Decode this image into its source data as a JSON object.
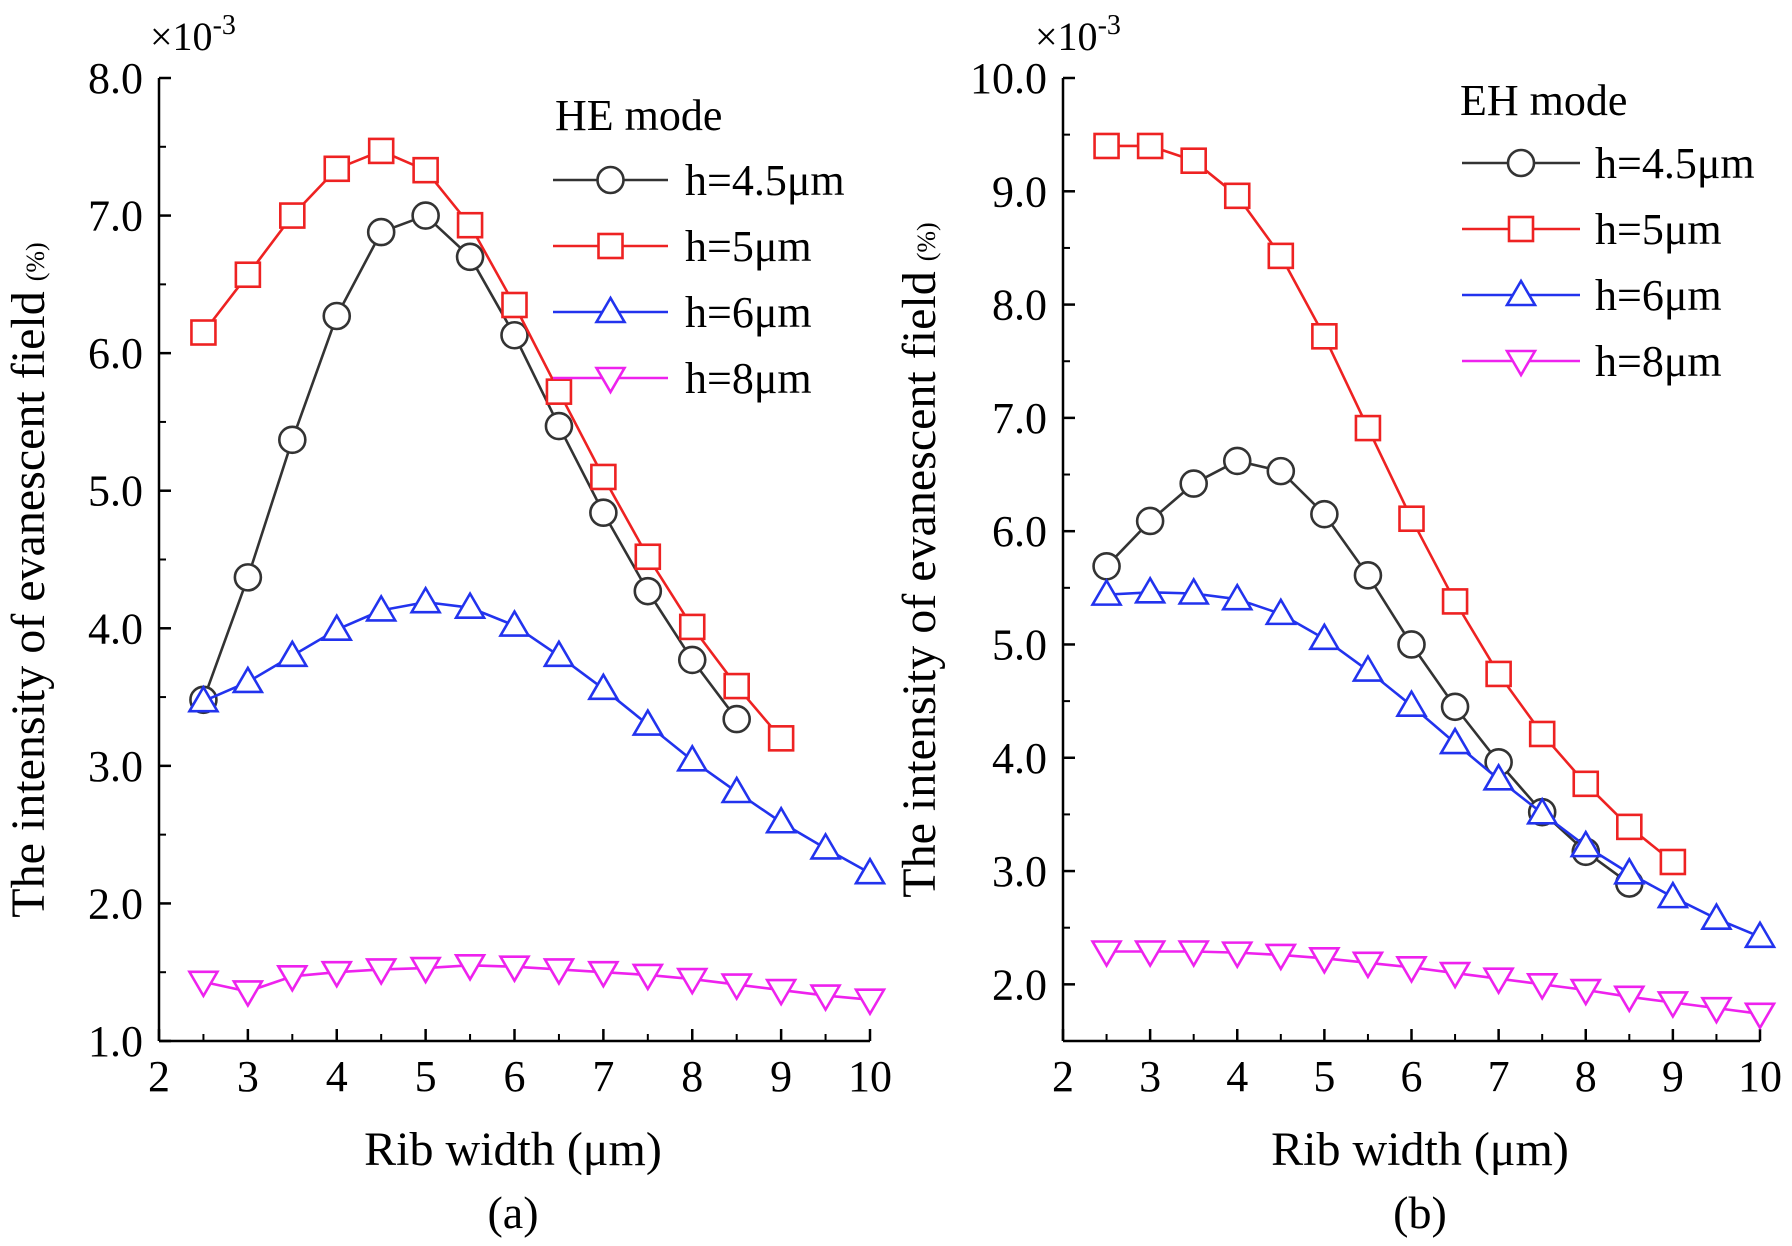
{
  "chart_data": [
    {
      "type": "line",
      "panel_label": "(a)",
      "legend_title": "HE mode",
      "xlabel": "Rib width (μm)",
      "ylabel": "The intensity of evanescent field",
      "ylabel_unit": "(%)",
      "y_multiplier_base": "×10",
      "y_multiplier_exp": "-3",
      "xlim": [
        2,
        10
      ],
      "ylim": [
        1.0,
        8.0
      ],
      "xticks": [
        2,
        3,
        4,
        5,
        6,
        7,
        8,
        9,
        10
      ],
      "yticks": [
        "1.0",
        "2.0",
        "3.0",
        "4.0",
        "5.0",
        "6.0",
        "7.0",
        "8.0"
      ],
      "series": [
        {
          "name": "h=4.5μm",
          "color": "#333333",
          "marker": "circle",
          "x": [
            2.5,
            3,
            3.5,
            4,
            4.5,
            5,
            5.5,
            6,
            6.5,
            7,
            7.5,
            8,
            8.5
          ],
          "y": [
            3.48,
            4.37,
            5.37,
            6.27,
            6.88,
            7.0,
            6.7,
            6.13,
            5.47,
            4.84,
            4.27,
            3.77,
            3.34
          ]
        },
        {
          "name": "h=5μm",
          "color": "#ee2222",
          "marker": "square",
          "x": [
            2.5,
            3,
            3.5,
            4,
            4.5,
            5,
            5.5,
            6,
            6.5,
            7,
            7.5,
            8,
            8.5,
            9
          ],
          "y": [
            6.15,
            6.57,
            7.0,
            7.34,
            7.47,
            7.33,
            6.93,
            6.35,
            5.72,
            5.1,
            4.52,
            4.01,
            3.58,
            3.2
          ]
        },
        {
          "name": "h=6μm",
          "color": "#2233ee",
          "marker": "triangle-up",
          "x": [
            2.5,
            3,
            3.5,
            4,
            4.5,
            5,
            5.5,
            6,
            6.5,
            7,
            7.5,
            8,
            8.5,
            9,
            9.5,
            10
          ],
          "y": [
            3.47,
            3.61,
            3.8,
            3.99,
            4.13,
            4.19,
            4.15,
            4.02,
            3.8,
            3.56,
            3.3,
            3.04,
            2.81,
            2.59,
            2.4,
            2.22
          ]
        },
        {
          "name": "h=8μm",
          "color": "#ee22ee",
          "marker": "triangle-down",
          "x": [
            2.5,
            3,
            3.5,
            4,
            4.5,
            5,
            5.5,
            6,
            6.5,
            7,
            7.5,
            8,
            8.5,
            9,
            9.5,
            10
          ],
          "y": [
            1.43,
            1.36,
            1.47,
            1.5,
            1.52,
            1.53,
            1.55,
            1.54,
            1.52,
            1.5,
            1.48,
            1.45,
            1.41,
            1.37,
            1.33,
            1.3
          ]
        }
      ]
    },
    {
      "type": "line",
      "panel_label": "(b)",
      "legend_title": "EH mode",
      "xlabel": "Rib width (μm)",
      "ylabel": "The intensity of evanescent field",
      "ylabel_unit": "(%)",
      "y_multiplier_base": "×10",
      "y_multiplier_exp": "-3",
      "xlim": [
        2,
        10
      ],
      "ylim": [
        1.5,
        10.0
      ],
      "xticks": [
        2,
        3,
        4,
        5,
        6,
        7,
        8,
        9,
        10
      ],
      "yticks": [
        "2.0",
        "3.0",
        "4.0",
        "5.0",
        "6.0",
        "7.0",
        "8.0",
        "9.0",
        "10.0"
      ],
      "series": [
        {
          "name": "h=4.5μm",
          "color": "#333333",
          "marker": "circle",
          "x": [
            2.5,
            3,
            3.5,
            4,
            4.5,
            5,
            5.5,
            6,
            6.5,
            7,
            7.5,
            8,
            8.5
          ],
          "y": [
            5.69,
            6.09,
            6.42,
            6.62,
            6.53,
            6.15,
            5.61,
            5.0,
            4.45,
            3.96,
            3.52,
            3.17,
            2.89
          ]
        },
        {
          "name": "h=5μm",
          "color": "#ee2222",
          "marker": "square",
          "x": [
            2.5,
            3,
            3.5,
            4,
            4.5,
            5,
            5.5,
            6,
            6.5,
            7,
            7.5,
            8,
            8.5,
            9
          ],
          "y": [
            9.4,
            9.4,
            9.27,
            8.96,
            8.43,
            7.72,
            6.91,
            6.11,
            5.38,
            4.74,
            4.21,
            3.77,
            3.39,
            3.08
          ]
        },
        {
          "name": "h=6μm",
          "color": "#2233ee",
          "marker": "triangle-up",
          "x": [
            2.5,
            3,
            3.5,
            4,
            4.5,
            5,
            5.5,
            6,
            6.5,
            7,
            7.5,
            8,
            8.5,
            9,
            9.5,
            10
          ],
          "y": [
            5.44,
            5.46,
            5.45,
            5.4,
            5.27,
            5.05,
            4.77,
            4.46,
            4.13,
            3.81,
            3.51,
            3.22,
            2.98,
            2.77,
            2.58,
            2.42
          ]
        },
        {
          "name": "h=8μm",
          "color": "#ee22ee",
          "marker": "triangle-down",
          "x": [
            2.5,
            3,
            3.5,
            4,
            4.5,
            5,
            5.5,
            6,
            6.5,
            7,
            7.5,
            8,
            8.5,
            9,
            9.5,
            10
          ],
          "y": [
            2.29,
            2.29,
            2.29,
            2.28,
            2.26,
            2.23,
            2.19,
            2.15,
            2.1,
            2.05,
            2.0,
            1.95,
            1.89,
            1.84,
            1.79,
            1.74
          ]
        }
      ]
    }
  ]
}
